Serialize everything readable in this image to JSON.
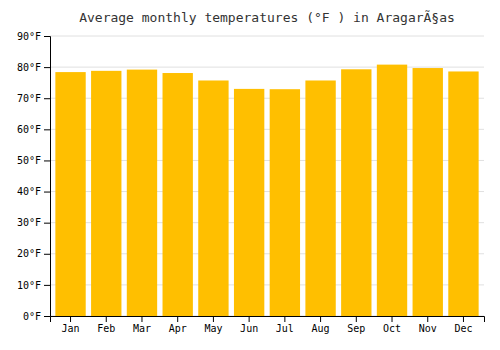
{
  "chart_data": {
    "type": "bar",
    "title": "Average monthly temperatures (°F ) in AragarÃ§as",
    "categories": [
      "Jan",
      "Feb",
      "Mar",
      "Apr",
      "May",
      "Jun",
      "Jul",
      "Aug",
      "Sep",
      "Oct",
      "Nov",
      "Dec"
    ],
    "values": [
      78.4,
      78.8,
      79.2,
      78.1,
      75.7,
      73.0,
      72.9,
      75.7,
      79.3,
      80.8,
      79.7,
      78.6
    ],
    "color": "#FFBF00",
    "ylim": [
      0,
      90
    ],
    "yticks": [
      {
        "value": 0,
        "label": "0°F"
      },
      {
        "value": 10,
        "label": "10°F"
      },
      {
        "value": 20,
        "label": "20°F"
      },
      {
        "value": 30,
        "label": "30°F"
      },
      {
        "value": 40,
        "label": "40°F"
      },
      {
        "value": 50,
        "label": "50°F"
      },
      {
        "value": 60,
        "label": "60°F"
      },
      {
        "value": 70,
        "label": "70°F"
      },
      {
        "value": 80,
        "label": "80°F"
      },
      {
        "value": 90,
        "label": "90°F"
      }
    ],
    "grid": true
  }
}
